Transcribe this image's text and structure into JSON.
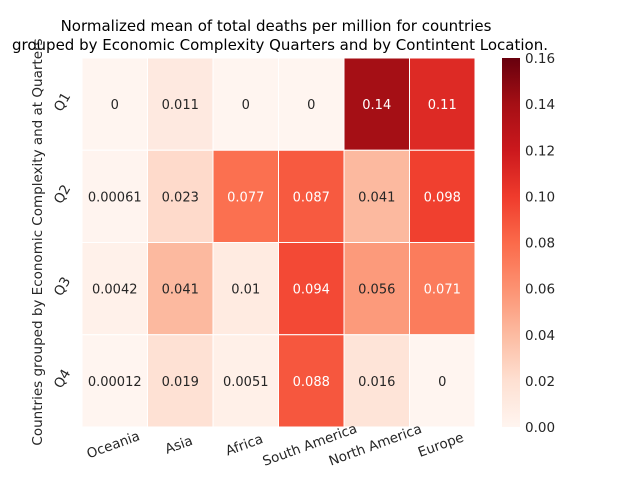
{
  "chart_data": {
    "type": "heatmap",
    "title_lines": [
      "Normalized mean of total deaths per million for countries",
      "grouped by Economic Complexity Quarters and by Contintent Location."
    ],
    "xlabel": "",
    "ylabel": "Countries grouped by Economic Complexity and at Quarters",
    "columns": [
      "Oceania",
      "Asia",
      "Africa",
      "South America",
      "North America",
      "Europe"
    ],
    "rows": [
      "Q1",
      "Q2",
      "Q3",
      "Q4"
    ],
    "values": [
      [
        0,
        0.011,
        0,
        0,
        0.14,
        0.11
      ],
      [
        0.00061,
        0.023,
        0.077,
        0.087,
        0.041,
        0.098
      ],
      [
        0.0042,
        0.041,
        0.01,
        0.094,
        0.056,
        0.071
      ],
      [
        0.00012,
        0.019,
        0.0051,
        0.088,
        0.016,
        0
      ]
    ],
    "value_labels": [
      [
        "0",
        "0.011",
        "0",
        "0",
        "0.14",
        "0.11"
      ],
      [
        "0.00061",
        "0.023",
        "0.077",
        "0.087",
        "0.041",
        "0.098"
      ],
      [
        "0.0042",
        "0.041",
        "0.01",
        "0.094",
        "0.056",
        "0.071"
      ],
      [
        "0.00012",
        "0.019",
        "0.0051",
        "0.088",
        "0.016",
        "0"
      ]
    ],
    "colormap": "Reds",
    "colorbar": {
      "vmin": 0,
      "vmax": 0.16,
      "ticks": [
        0.0,
        0.02,
        0.04,
        0.06,
        0.08,
        0.1,
        0.12,
        0.14,
        0.16
      ],
      "tick_labels": [
        "0.00",
        "0.02",
        "0.04",
        "0.06",
        "0.08",
        "0.10",
        "0.12",
        "0.14",
        "0.16"
      ]
    },
    "grid": false,
    "cell_border_color": "#ffffff"
  }
}
